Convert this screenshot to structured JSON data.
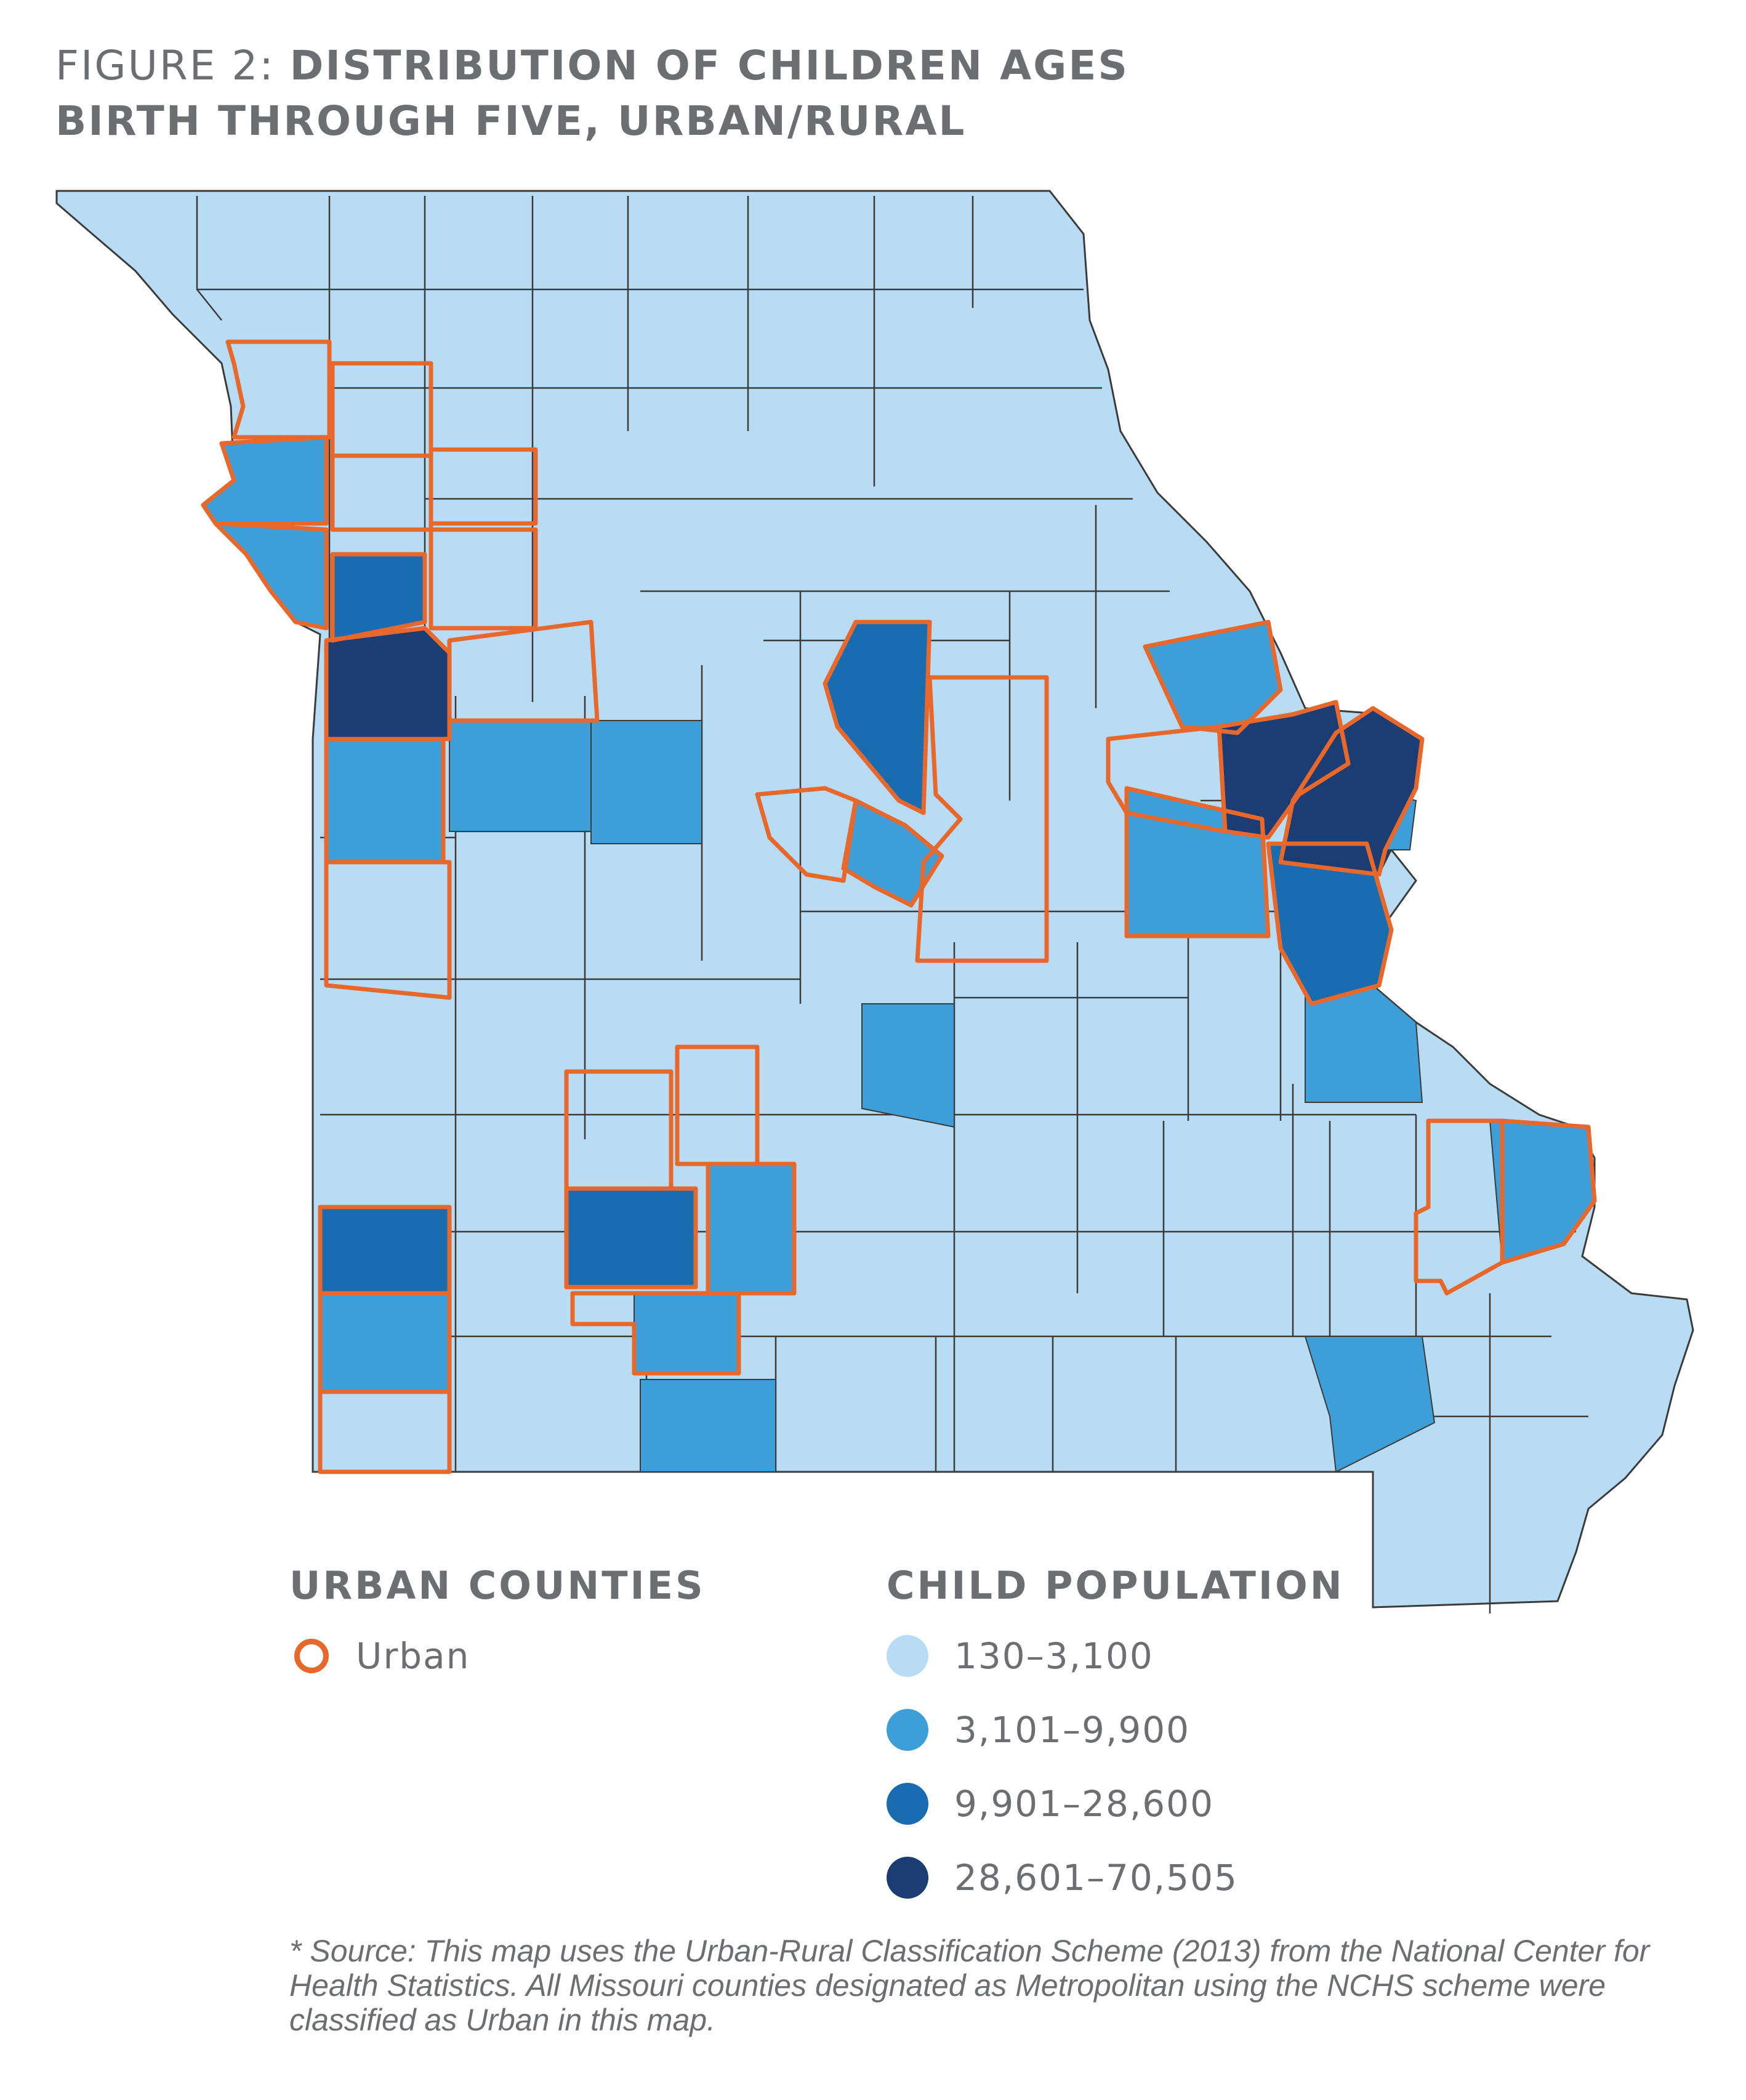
{
  "title": {
    "lead": "FIGURE 2:",
    "bold_line1": "DISTRIBUTION OF CHILDREN AGES",
    "line2": "BIRTH THROUGH FIVE, URBAN/RURAL"
  },
  "colors": {
    "class1": "#b7dcf3",
    "class2": "#3e9fd8",
    "class3": "#1a6cb0",
    "class4": "#1b3d73",
    "urban_outline": "#e8672b",
    "county_border": "#3b3b3b"
  },
  "legend_urban": {
    "heading": "URBAN COUNTIES",
    "item": "Urban"
  },
  "legend_population": {
    "heading": "CHILD POPULATION",
    "classes": [
      {
        "label": "130–3,100",
        "color": "#b7dcf3"
      },
      {
        "label": "3,101–9,900",
        "color": "#3e9fd8"
      },
      {
        "label": "9,901–28,600",
        "color": "#1a6cb0"
      },
      {
        "label": "28,601–70,505",
        "color": "#1b3d73"
      }
    ]
  },
  "source_note": {
    "star": "*",
    "text": "Source: This map uses the Urban-Rural Classification Scheme (2013) from the National Center for Health Statistics. All Missouri counties designated as Metropolitan using the NCHS scheme were classified as Urban in this map."
  }
}
